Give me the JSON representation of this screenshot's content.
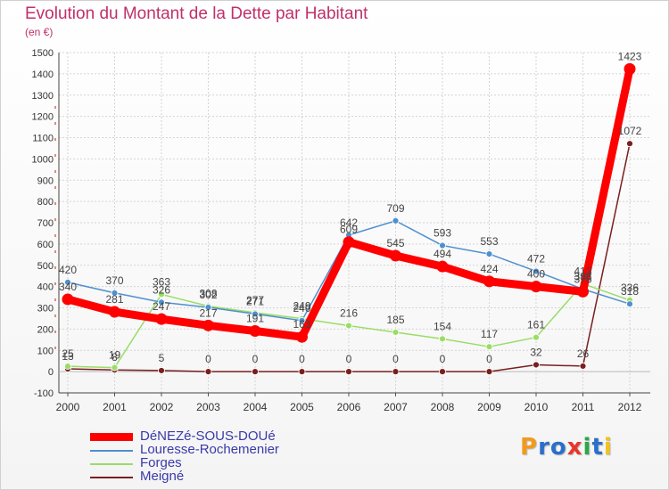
{
  "chart_data": {
    "type": "line",
    "title": "Evolution du Montant de la Dette par Habitant",
    "subtitle": "(en €)",
    "xlabel": "",
    "ylabel": "",
    "ylim": [
      -100,
      1500
    ],
    "yticks": [
      -100,
      0,
      100,
      200,
      300,
      400,
      500,
      600,
      700,
      800,
      900,
      1000,
      1100,
      1200,
      1300,
      1400,
      1500
    ],
    "categories": [
      "2000",
      "2001",
      "2002",
      "2003",
      "2004",
      "2005",
      "2006",
      "2007",
      "2008",
      "2009",
      "2010",
      "2011",
      "2012"
    ],
    "grid": true,
    "legend_position": "bottom-left",
    "series": [
      {
        "name": "DéNEZé-SOUS-DOUé",
        "color": "#ff0000",
        "values": [
          340,
          281,
          247,
          217,
          191,
          163,
          609,
          545,
          494,
          424,
          400,
          376,
          1423
        ],
        "labels": [
          "340",
          "281",
          "247",
          "217",
          "191",
          "163",
          "609",
          "545",
          "494",
          "424",
          "400",
          "376",
          "1423"
        ]
      },
      {
        "name": "Louresse-Rochemenier",
        "color": "#4f8fd0",
        "values": [
          420,
          370,
          326,
          302,
          271,
          240,
          642,
          709,
          593,
          553,
          472,
          388,
          318
        ],
        "labels": [
          "420",
          "370",
          "326",
          "302",
          "271",
          "240",
          "642",
          "709",
          "593",
          "553",
          "472",
          "388",
          "318"
        ]
      },
      {
        "name": "Forges",
        "color": "#99dd66",
        "values": [
          25,
          19,
          363,
          308,
          277,
          249,
          216,
          185,
          154,
          117,
          161,
          413,
          336
        ],
        "labels": [
          "25",
          "19",
          "363",
          "308",
          "277",
          "249",
          "216",
          "185",
          "154",
          "117",
          "161",
          "413",
          "336"
        ]
      },
      {
        "name": "Meigné",
        "color": "#7a1f1f",
        "values": [
          13,
          8,
          5,
          0,
          0,
          0,
          0,
          0,
          0,
          0,
          32,
          26,
          1072
        ],
        "labels": [
          "13",
          "8",
          "5",
          "0",
          "0",
          "0",
          "0",
          "0",
          "0",
          "0",
          "32",
          "26",
          "1072"
        ]
      }
    ]
  },
  "logo": {
    "letters": [
      "P",
      "r",
      "o",
      "x",
      "i",
      "t",
      "i"
    ],
    "colors": [
      "#f29a1e",
      "#2a6fc9",
      "#2a6fc9",
      "#e8362c",
      "#2aa84a",
      "#2a6fc9",
      "#f2c21e"
    ]
  }
}
